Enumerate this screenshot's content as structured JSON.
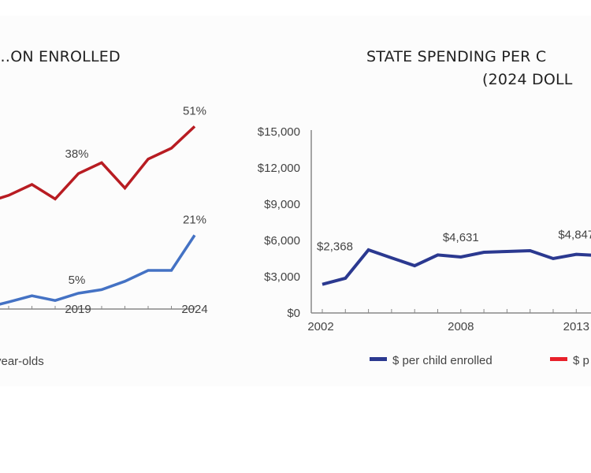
{
  "chart_data": [
    {
      "type": "line",
      "title": "…ON ENROLLED",
      "x": [
        2015,
        2016,
        2017,
        2018,
        2019,
        2020,
        2021,
        2022,
        2023,
        2024
      ],
      "x_tick_labels": [
        "2019",
        "2024"
      ],
      "series": [
        {
          "values": [
            30,
            32,
            35,
            31,
            38,
            41,
            34,
            42,
            45,
            51
          ],
          "color": "#b81c22"
        },
        {
          "values": [
            1,
            2.6,
            4.3,
            3,
            5,
            6,
            8.3,
            11.3,
            11.3,
            21
          ],
          "color": "#4472c4"
        }
      ],
      "data_labels": [
        {
          "series": 0,
          "x": 2019,
          "text": "38%"
        },
        {
          "series": 0,
          "x": 2024,
          "text": "51%"
        },
        {
          "series": 1,
          "x": 2019,
          "text": "5%"
        },
        {
          "series": 1,
          "x": 2024,
          "text": "21%"
        }
      ],
      "legend_text": "year-olds",
      "ylim": [
        0,
        55
      ]
    },
    {
      "type": "line",
      "title_lines": [
        "STATE SPENDING PER C",
        "(2024 DOLL"
      ],
      "x": [
        2002,
        2003,
        2004,
        2005,
        2006,
        2007,
        2008,
        2009,
        2010,
        2011,
        2012,
        2013,
        2014
      ],
      "x_tick_labels": [
        "2002",
        "2008",
        "2013"
      ],
      "y_tick_labels": [
        "$0",
        "$3,000",
        "$6,000",
        "$9,000",
        "$12,000",
        "$15,000"
      ],
      "y_ticks": [
        0,
        3000,
        6000,
        9000,
        12000,
        15000
      ],
      "ylim": [
        0,
        15000
      ],
      "series": [
        {
          "name": "$ per child enrolled",
          "values": [
            2368,
            2870,
            5220,
            4560,
            3910,
            4800,
            4631,
            5020,
            5090,
            5150,
            4500,
            4847,
            4750
          ],
          "color": "#2b3990"
        }
      ],
      "data_labels": [
        {
          "x": 2002,
          "text": "$2,368"
        },
        {
          "x": 2008,
          "text": "$4,631"
        },
        {
          "x": 2013,
          "text": "$4,847"
        }
      ],
      "legend": [
        {
          "text": "$ per child enrolled",
          "color": "#2b3990"
        },
        {
          "text": "$ p",
          "color": "#e8202a"
        }
      ],
      "legend_placement": "bottom",
      "grid": false
    }
  ]
}
